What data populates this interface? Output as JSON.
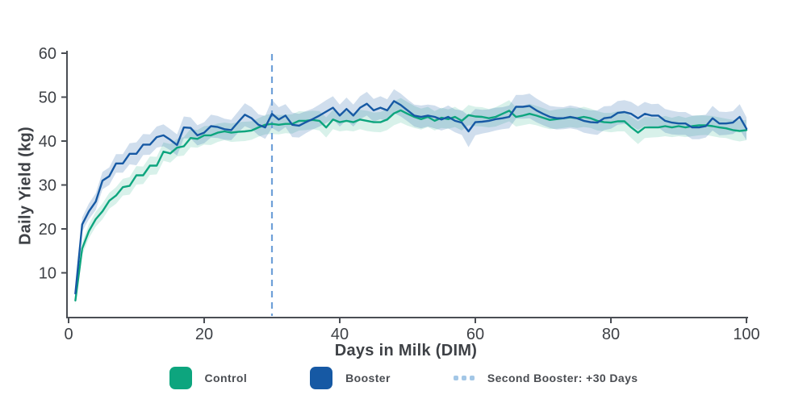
{
  "figure": {
    "background": "#ffffff"
  },
  "axis_color": "#4A4E54",
  "text_color": "#3E4146",
  "chart_data": {
    "type": "line",
    "title": "",
    "xlabel": "Days in Milk (DIM)",
    "ylabel": "Daily Yield (kg)",
    "xlim": [
      0,
      100
    ],
    "ylim": [
      0,
      60
    ],
    "xticks": [
      0,
      20,
      40,
      60,
      80,
      100
    ],
    "yticks": [
      10,
      20,
      30,
      40,
      50,
      60
    ],
    "grid": false,
    "legend_position": "bottom",
    "x": [
      1,
      2,
      3,
      4,
      5,
      6,
      7,
      8,
      9,
      10,
      11,
      12,
      13,
      14,
      15,
      16,
      17,
      18,
      19,
      20,
      21,
      22,
      23,
      24,
      25,
      26,
      27,
      28,
      29,
      30,
      31,
      32,
      33,
      34,
      35,
      36,
      37,
      38,
      39,
      40,
      41,
      42,
      43,
      44,
      45,
      46,
      47,
      48,
      49,
      50,
      51,
      52,
      53,
      54,
      55,
      56,
      57,
      58,
      59,
      60,
      61,
      62,
      63,
      64,
      65,
      66,
      67,
      68,
      69,
      70,
      71,
      72,
      73,
      74,
      75,
      76,
      77,
      78,
      79,
      80,
      81,
      82,
      83,
      84,
      85,
      86,
      87,
      88,
      89,
      90,
      91,
      92,
      93,
      94,
      95,
      96,
      97,
      98,
      99,
      100
    ],
    "series": [
      {
        "name": "Control",
        "color": "#0DA57E",
        "band_opacity": 0.16,
        "values": [
          3.7,
          15.5,
          19.5,
          22.2,
          24.0,
          26.4,
          27.6,
          29.5,
          29.8,
          32.2,
          32.2,
          34.4,
          34.4,
          37.6,
          37.2,
          38.5,
          38.8,
          40.7,
          40.5,
          41.3,
          41.3,
          41.9,
          42.2,
          41.9,
          42.1,
          42.2,
          42.4,
          43.1,
          43.7,
          43.9,
          43.7,
          43.9,
          43.9,
          44.6,
          44.6,
          44.8,
          44.6,
          43.1,
          44.9,
          44.3,
          44.6,
          44.3,
          44.9,
          44.6,
          44.3,
          44.3,
          44.9,
          46.3,
          47.0,
          46.2,
          45.5,
          45.0,
          45.5,
          44.6,
          45.3,
          45.0,
          45.5,
          44.6,
          45.9,
          45.6,
          45.5,
          45.2,
          45.5,
          46.2,
          46.9,
          45.5,
          45.8,
          46.2,
          45.8,
          45.3,
          44.8,
          45.0,
          45.2,
          45.4,
          45.2,
          45.5,
          45.2,
          44.6,
          44.3,
          44.2,
          44.5,
          44.5,
          43.1,
          41.9,
          43.1,
          43.1,
          43.1,
          43.4,
          43.1,
          43.4,
          43.1,
          43.4,
          43.6,
          43.6,
          43.4,
          43.1,
          42.9,
          42.5,
          42.3,
          42.5
        ],
        "band_halfwidth": [
          1.0,
          1.4,
          1.6,
          1.7,
          1.8,
          1.8,
          1.9,
          1.9,
          2.0,
          2.1,
          2.0,
          2.1,
          2.0,
          2.1,
          2.1,
          2.0,
          2.1,
          2.1,
          2.0,
          2.1,
          2.2,
          2.1,
          2.0,
          2.1,
          2.2,
          2.2,
          2.1,
          2.1,
          2.2,
          2.3,
          2.2,
          2.1,
          2.2,
          2.2,
          2.1,
          2.1,
          2.2,
          2.3,
          2.2,
          2.1,
          2.2,
          2.1,
          2.2,
          2.3,
          2.2,
          2.3,
          2.4,
          2.7,
          2.8,
          2.7,
          2.5,
          2.4,
          2.3,
          2.2,
          2.3,
          2.2,
          2.3,
          2.2,
          2.3,
          2.2,
          2.2,
          2.1,
          2.2,
          2.3,
          2.4,
          2.2,
          2.2,
          2.3,
          2.2,
          2.2,
          2.1,
          2.2,
          2.2,
          2.2,
          2.2,
          2.3,
          2.2,
          2.2,
          2.1,
          2.2,
          2.3,
          2.3,
          2.4,
          2.6,
          2.4,
          2.3,
          2.2,
          2.3,
          2.2,
          2.3,
          2.2,
          2.3,
          2.3,
          2.2,
          2.3,
          2.3,
          2.2,
          2.3,
          2.4,
          2.3
        ]
      },
      {
        "name": "Booster",
        "color": "#1659A4",
        "band_opacity": 0.2,
        "values": [
          5.3,
          21.0,
          24.0,
          26.2,
          31.0,
          32.0,
          34.9,
          34.9,
          37.1,
          37.1,
          39.2,
          39.2,
          40.9,
          41.3,
          40.3,
          39.1,
          43.1,
          43.0,
          41.3,
          41.9,
          43.4,
          43.2,
          42.7,
          42.5,
          44.3,
          46.0,
          45.2,
          43.7,
          43.1,
          46.2,
          44.9,
          45.8,
          43.7,
          43.5,
          44.3,
          45.0,
          45.8,
          46.7,
          47.6,
          45.8,
          47.3,
          45.8,
          47.6,
          48.5,
          47.0,
          47.6,
          47.0,
          49.1,
          48.2,
          47.0,
          45.8,
          45.5,
          45.8,
          45.5,
          44.9,
          45.5,
          44.6,
          44.2,
          42.2,
          44.3,
          44.4,
          44.6,
          45.0,
          45.2,
          45.5,
          47.8,
          47.8,
          48.0,
          47.0,
          46.2,
          45.5,
          45.2,
          45.2,
          45.5,
          45.2,
          44.6,
          44.3,
          44.2,
          45.2,
          45.4,
          46.4,
          46.6,
          46.2,
          45.2,
          46.2,
          45.8,
          45.8,
          44.6,
          44.2,
          44.0,
          44.0,
          43.1,
          43.1,
          43.4,
          45.2,
          44.0,
          44.0,
          44.2,
          45.5,
          42.8
        ],
        "band_halfwidth": [
          1.2,
          1.6,
          1.8,
          1.9,
          2.0,
          2.0,
          2.1,
          2.1,
          2.4,
          2.6,
          2.4,
          2.3,
          2.4,
          2.5,
          2.4,
          2.4,
          2.5,
          2.4,
          2.3,
          2.4,
          2.6,
          2.5,
          2.4,
          2.3,
          2.4,
          2.6,
          2.5,
          2.4,
          2.6,
          3.2,
          2.8,
          2.6,
          2.8,
          2.7,
          2.5,
          2.4,
          2.5,
          2.6,
          2.6,
          2.5,
          2.6,
          2.5,
          2.6,
          2.7,
          2.6,
          2.6,
          2.5,
          2.7,
          2.6,
          2.5,
          2.5,
          2.6,
          2.5,
          2.6,
          2.5,
          2.6,
          2.6,
          2.8,
          3.6,
          3.0,
          2.7,
          2.6,
          2.6,
          2.5,
          2.6,
          2.7,
          2.7,
          2.8,
          2.7,
          2.6,
          2.5,
          2.6,
          2.5,
          2.6,
          2.6,
          2.7,
          2.7,
          2.8,
          2.7,
          2.6,
          2.7,
          2.7,
          2.7,
          2.7,
          2.7,
          2.6,
          2.7,
          2.7,
          2.7,
          2.6,
          2.6,
          2.7,
          2.7,
          2.6,
          2.8,
          2.7,
          2.6,
          2.6,
          2.9,
          2.6
        ]
      }
    ],
    "vline": {
      "x": 30,
      "label": "Second Booster: +30 Days",
      "style": "dashed",
      "color": "#6FA0D8",
      "legend_marker_color": "#A3C7E6"
    }
  }
}
